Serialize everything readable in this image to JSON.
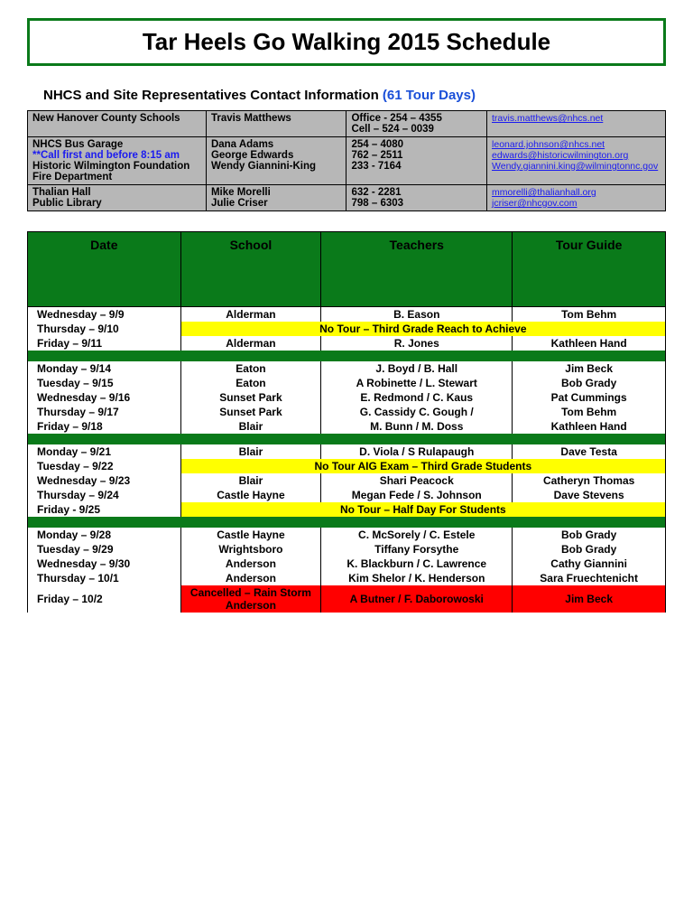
{
  "title": "Tar Heels Go Walking 2015 Schedule",
  "subtitle_main": "NHCS and Site Representatives Contact Information ",
  "subtitle_days": "(61 Tour Days)",
  "contacts": [
    {
      "org": "New Hanover County Schools",
      "note": "",
      "person": "Travis Matthews",
      "phone": "Office - 254 – 4355\nCell – 524 – 0039",
      "email": "travis.matthews@nhcs.net"
    },
    {
      "org": "NHCS Bus Garage",
      "note": "**Call first and before 8:15 am",
      "person": "Dana Adams",
      "phone": "254 – 4080",
      "email": "leonard.johnson@nhcs.net"
    },
    {
      "org": "Historic Wilmington Foundation",
      "note": "",
      "person": "George Edwards",
      "phone": "762 – 2511",
      "email": "edwards@historicwilmington.org"
    },
    {
      "org": "Fire Department",
      "note": "",
      "person": "Wendy Giannini-King",
      "phone": "233 - 7164",
      "email": "Wendy.giannini.king@wilmingtonnc.gov"
    },
    {
      "org": "Thalian Hall",
      "note": "",
      "person": "Mike Morelli",
      "phone": " 632 - 2281",
      "email": "mmorelli@thalianhall.org"
    },
    {
      "org": "Public Library",
      "note": "",
      "person": "Julie Criser",
      "phone": "798 – 6303",
      "email": "jcriser@nhcgov.com"
    }
  ],
  "schedule_headers": {
    "date": "Date",
    "school": "School",
    "teachers": "Teachers",
    "guide": "Tour Guide"
  },
  "rows": [
    {
      "date": "Wednesday – 9/9",
      "school": "Alderman",
      "teachers": "B. Eason",
      "guide": "Tom Behm"
    },
    {
      "date": "Thursday – 9/10",
      "school": "",
      "no_tour": "No Tour – Third Grade Reach to Achieve",
      "guide": ""
    },
    {
      "date": "Friday – 9/11",
      "school": "Alderman",
      "teachers": "R. Jones",
      "guide": "Kathleen Hand"
    },
    {
      "gap": true
    },
    {
      "date": "Monday – 9/14",
      "school": "Eaton",
      "teachers": "J. Boyd / B. Hall",
      "guide": "Jim Beck"
    },
    {
      "date": "Tuesday – 9/15",
      "school": "Eaton",
      "teachers": "A Robinette / L. Stewart",
      "guide": "Bob Grady"
    },
    {
      "date": "Wednesday – 9/16",
      "school": "Sunset Park",
      "teachers": "E. Redmond / C. Kaus",
      "guide": "Pat Cummings"
    },
    {
      "date": "Thursday – 9/17",
      "school": "Sunset Park",
      "teachers": "G. Cassidy C. Gough /",
      "guide": "Tom Behm"
    },
    {
      "date": "Friday – 9/18",
      "school": "Blair",
      "teachers": "M. Bunn /  M. Doss",
      "guide": "Kathleen Hand"
    },
    {
      "gap": true
    },
    {
      "date": "Monday – 9/21",
      "school": "Blair",
      "teachers": "D. Viola / S Rulapaugh",
      "guide": "Dave Testa"
    },
    {
      "date": "Tuesday – 9/22",
      "school": "",
      "no_tour": "No Tour AIG Exam – Third Grade Students",
      "guide": ""
    },
    {
      "date": "Wednesday – 9/23",
      "school": "Blair",
      "teachers": "Shari Peacock",
      "guide": "Catheryn Thomas"
    },
    {
      "date": "Thursday – 9/24",
      "school": "Castle Hayne",
      "teachers": "Megan Fede / S. Johnson",
      "guide": "Dave Stevens"
    },
    {
      "date": "Friday -  9/25",
      "school": "",
      "no_tour": "No Tour – Half Day For Students",
      "guide": ""
    },
    {
      "gap": true
    },
    {
      "date": "Monday – 9/28",
      "school": "Castle Hayne",
      "teachers": "C. McSorely / C. Estele",
      "guide": "Bob Grady"
    },
    {
      "date": "Tuesday – 9/29",
      "school": "Wrightsboro",
      "teachers": "Tiffany Forsythe",
      "guide": "Bob Grady"
    },
    {
      "date": "Wednesday – 9/30",
      "school": "Anderson",
      "teachers": "K. Blackburn / C. Lawrence",
      "guide": "Cathy Giannini"
    },
    {
      "date": "Thursday – 10/1",
      "school": "Anderson",
      "teachers": "Kim Shelor / K. Henderson",
      "guide": "Sara Fruechtenicht"
    },
    {
      "date": "Friday – 10/2",
      "school": "Cancelled – Rain Storm Anderson",
      "school_cancelled": true,
      "teachers": "A Butner / F. Daborowoski",
      "teachers_cancelled": true,
      "guide": "Jim Beck",
      "guide_cancelled": true
    }
  ]
}
